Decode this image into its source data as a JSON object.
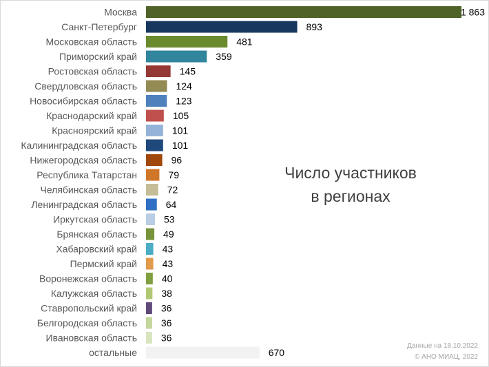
{
  "chart_data": {
    "type": "bar",
    "orientation": "horizontal",
    "categories": [
      "Москва",
      "Санкт-Петербург",
      "Московская область",
      "Приморский край",
      "Ростовская область",
      "Свердловская область",
      "Новосибирская область",
      "Краснодарский край",
      "Красноярский край",
      "Калининградская область",
      "Нижегородская область",
      "Республика Татарстан",
      "Челябинская область",
      "Ленинградская область",
      "Иркутская область",
      "Брянская область",
      "Хабаровский край",
      "Пермский край",
      "Воронежская область",
      "Калужская область",
      "Ставропольский край",
      "Белгородская область",
      "Ивановская область",
      "остальные"
    ],
    "values": [
      1863,
      893,
      481,
      359,
      145,
      124,
      123,
      105,
      101,
      101,
      96,
      79,
      72,
      64,
      53,
      49,
      43,
      43,
      40,
      38,
      36,
      36,
      36,
      670
    ],
    "value_labels": [
      "1 863",
      "893",
      "481",
      "359",
      "145",
      "124",
      "123",
      "105",
      "101",
      "101",
      "96",
      "79",
      "72",
      "64",
      "53",
      "49",
      "43",
      "43",
      "40",
      "38",
      "36",
      "36",
      "36",
      "670"
    ],
    "colors": [
      "#4f6228",
      "#17375e",
      "#6a8a2e",
      "#31859c",
      "#953735",
      "#948a54",
      "#4f81bd",
      "#c0504d",
      "#95b3d7",
      "#1f497d",
      "#a0480b",
      "#d07628",
      "#c4bd97",
      "#2f70c4",
      "#b9cde5",
      "#77933c",
      "#4bacc6",
      "#e29a4b",
      "#7f9f40",
      "#b1c872",
      "#604a7b",
      "#c3d69b",
      "#d7e4bd",
      "#f2f2f2"
    ],
    "xlim": [
      0,
      1863
    ],
    "grid": false,
    "legend": "none",
    "title": "Число участников в регионах",
    "title_lines": [
      "Число участников",
      "в регионах"
    ]
  },
  "footer": {
    "date_line": "Данные на 18.10.2022",
    "copyright_line": "© АНО МИАЦ, 2022"
  }
}
